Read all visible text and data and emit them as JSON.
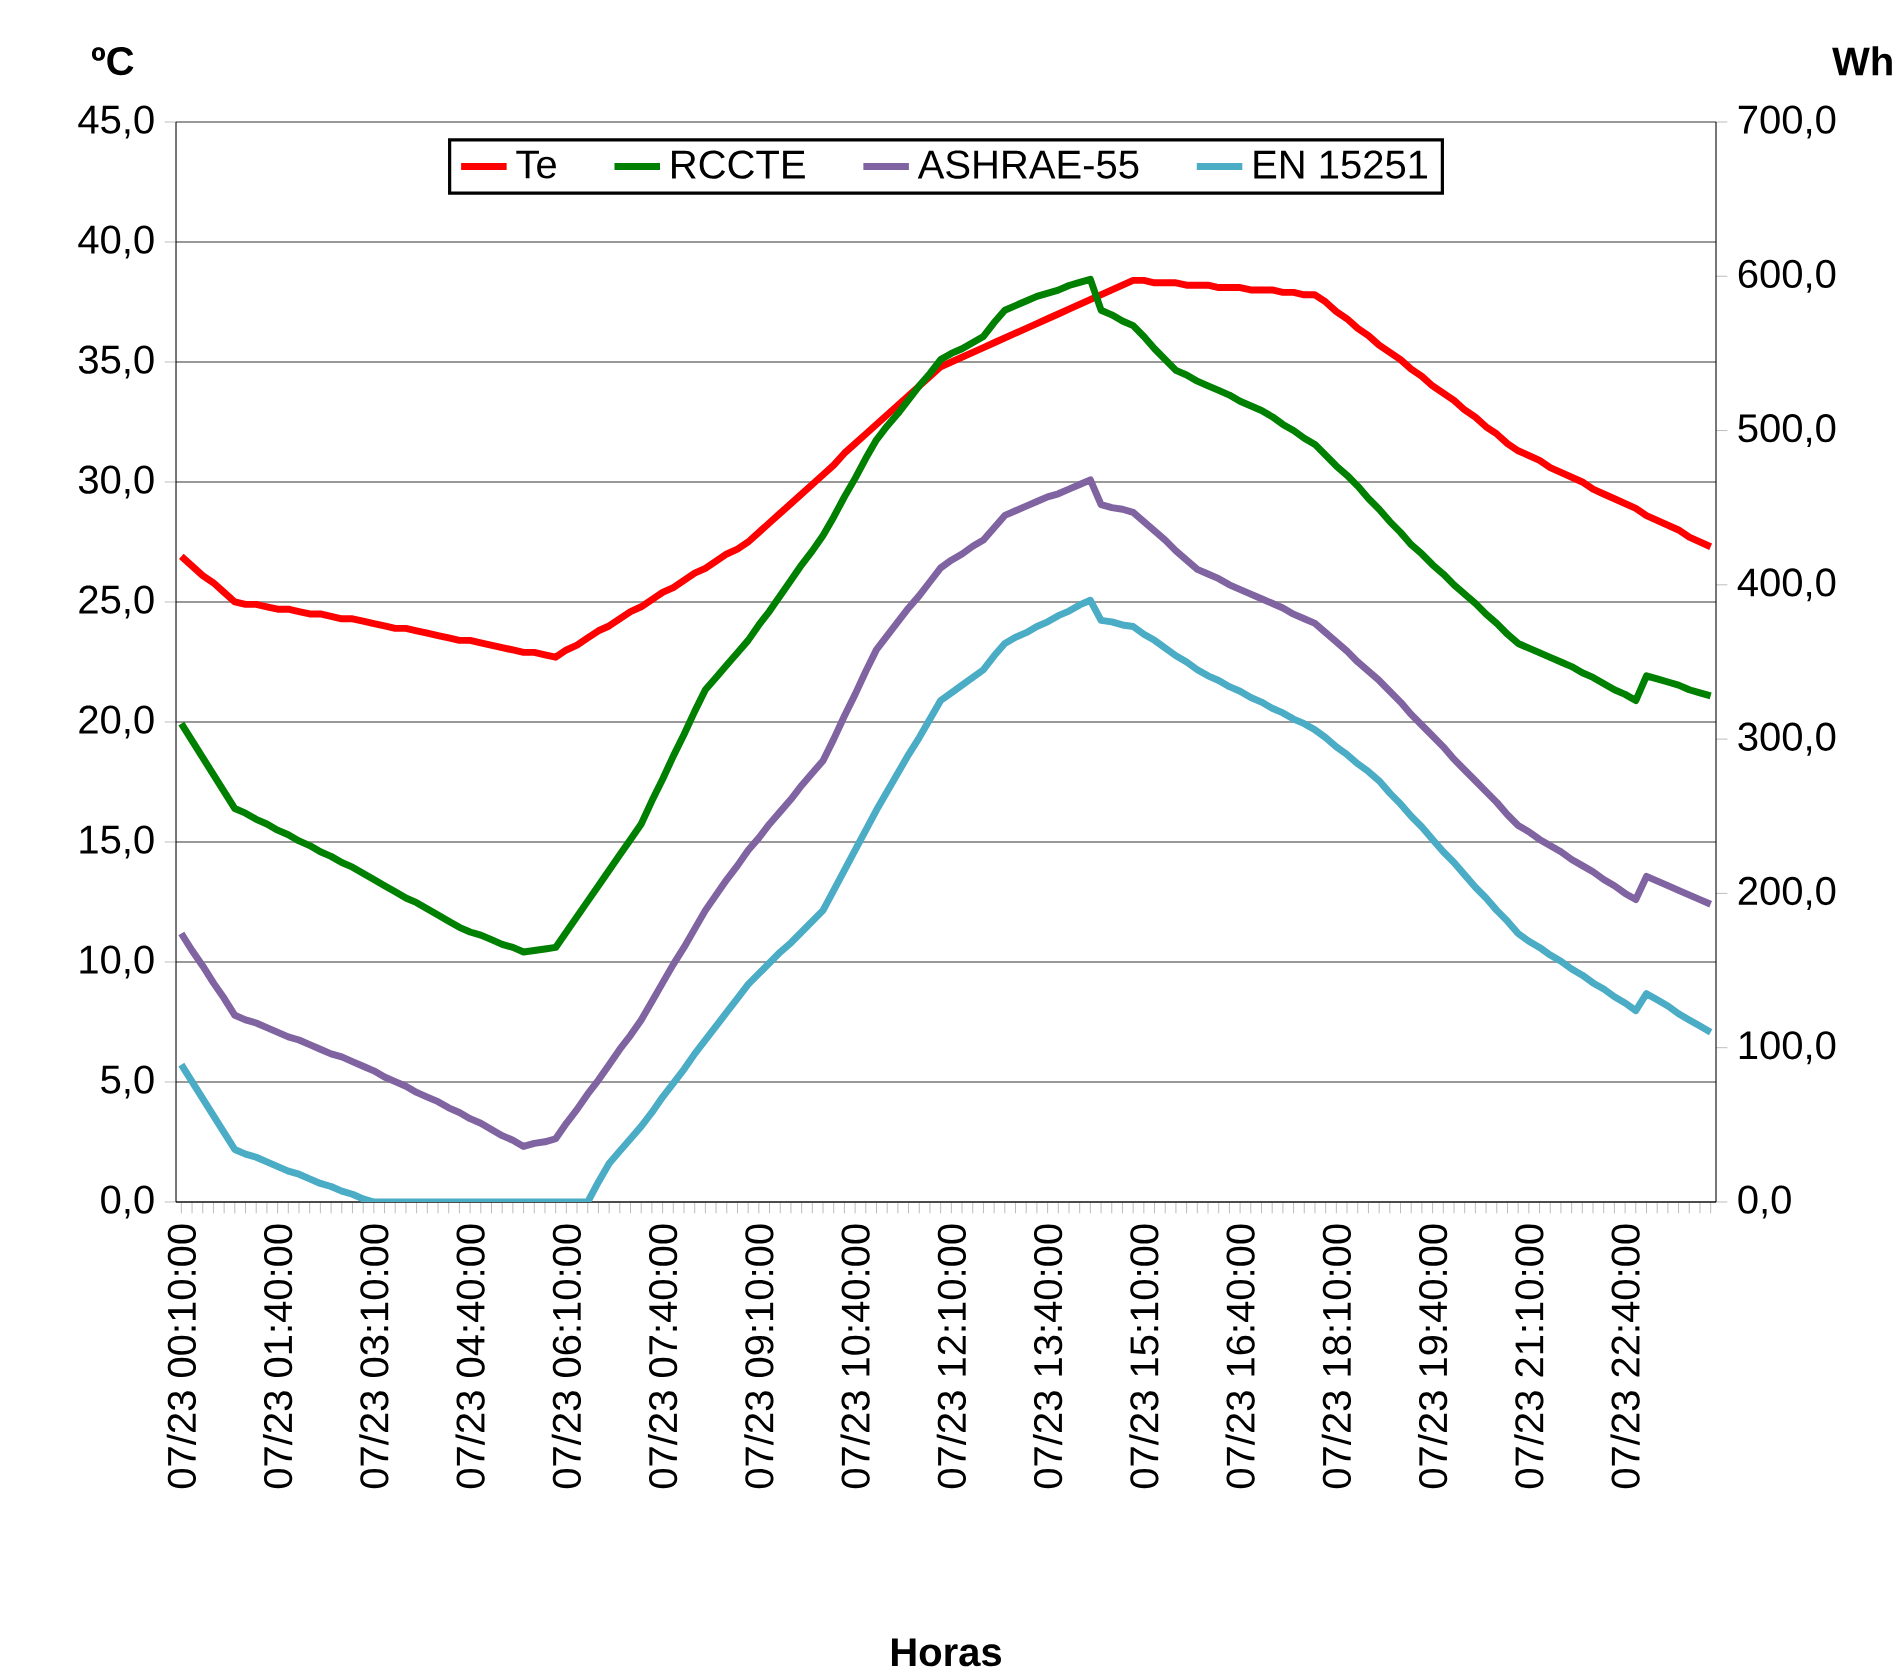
{
  "chart_data": {
    "type": "line",
    "xlabel": "Horas",
    "ylabel": "ºC",
    "y2label": "Wh",
    "categories": [
      "07/23  00:10:00",
      null,
      null,
      null,
      null,
      null,
      null,
      null,
      null,
      "07/23  01:40:00",
      null,
      null,
      null,
      null,
      null,
      null,
      null,
      null,
      "07/23  03:10:00",
      null,
      null,
      null,
      null,
      null,
      null,
      null,
      null,
      "07/23  04:40:00",
      null,
      null,
      null,
      null,
      null,
      null,
      null,
      null,
      "07/23  06:10:00",
      null,
      null,
      null,
      null,
      null,
      null,
      null,
      null,
      "07/23  07:40:00",
      null,
      null,
      null,
      null,
      null,
      null,
      null,
      null,
      "07/23  09:10:00",
      null,
      null,
      null,
      null,
      null,
      null,
      null,
      null,
      "07/23  10:40:00",
      null,
      null,
      null,
      null,
      null,
      null,
      null,
      null,
      "07/23  12:10:00",
      null,
      null,
      null,
      null,
      null,
      null,
      null,
      null,
      "07/23  13:40:00",
      null,
      null,
      null,
      null,
      null,
      null,
      null,
      null,
      "07/23  15:10:00",
      null,
      null,
      null,
      null,
      null,
      null,
      null,
      null,
      "07/23  16:40:00",
      null,
      null,
      null,
      null,
      null,
      null,
      null,
      null,
      "07/23  18:10:00",
      null,
      null,
      null,
      null,
      null,
      null,
      null,
      null,
      "07/23  19:40:00",
      null,
      null,
      null,
      null,
      null,
      null,
      null,
      null,
      "07/23  21:10:00",
      null,
      null,
      null,
      null,
      null,
      null,
      null,
      null,
      "07/23  22:40:00",
      null,
      null,
      null,
      null,
      null,
      null,
      null,
      null
    ],
    "ylim": [
      0,
      45
    ],
    "yticks": [
      {
        "value": 0,
        "label": "0,0"
      },
      {
        "value": 5,
        "label": "5,0"
      },
      {
        "value": 10,
        "label": "10,0"
      },
      {
        "value": 15,
        "label": "15,0"
      },
      {
        "value": 20,
        "label": "20,0"
      },
      {
        "value": 25,
        "label": "25,0"
      },
      {
        "value": 30,
        "label": "30,0"
      },
      {
        "value": 35,
        "label": "35,0"
      },
      {
        "value": 40,
        "label": "40,0"
      },
      {
        "value": 45,
        "label": "45,0"
      }
    ],
    "y2lim": [
      0,
      700
    ],
    "y2ticks": [
      {
        "value": 0,
        "label": "0,0"
      },
      {
        "value": 100,
        "label": "100,0"
      },
      {
        "value": 200,
        "label": "200,0"
      },
      {
        "value": 300,
        "label": "300,0"
      },
      {
        "value": 400,
        "label": "400,0"
      },
      {
        "value": 500,
        "label": "500,0"
      },
      {
        "value": 600,
        "label": "600,0"
      },
      {
        "value": 700,
        "label": "700,0"
      }
    ],
    "grid": "y",
    "legend": "top",
    "marker": "none",
    "line_style": "solid",
    "series": [
      {
        "name": "Te",
        "color": "#ff0000",
        "values": [
          26.9,
          26.5,
          26.1,
          25.8,
          25.4,
          25.0,
          24.9,
          24.9,
          24.8,
          24.7,
          24.7,
          24.6,
          24.5,
          24.5,
          24.4,
          24.3,
          24.3,
          24.2,
          24.1,
          24.0,
          23.9,
          23.9,
          23.8,
          23.7,
          23.6,
          23.5,
          23.4,
          23.4,
          23.3,
          23.2,
          23.1,
          23.0,
          22.9,
          22.9,
          22.8,
          22.7,
          23.0,
          23.2,
          23.5,
          23.8,
          24.0,
          24.3,
          24.6,
          24.8,
          25.1,
          25.4,
          25.6,
          25.9,
          26.2,
          26.4,
          26.7,
          27.0,
          27.2,
          27.5,
          27.9,
          28.3,
          28.7,
          29.1,
          29.5,
          29.9,
          30.3,
          30.7,
          31.2,
          31.6,
          32.0,
          32.4,
          32.8,
          33.2,
          33.6,
          34.0,
          34.4,
          34.8,
          35.0,
          35.2,
          35.4,
          35.6,
          35.8,
          36.0,
          36.2,
          36.4,
          36.6,
          36.8,
          37.0,
          37.2,
          37.4,
          37.6,
          37.8,
          38.0,
          38.2,
          38.4,
          38.4,
          38.3,
          38.3,
          38.3,
          38.2,
          38.2,
          38.2,
          38.1,
          38.1,
          38.1,
          38.0,
          38.0,
          38.0,
          37.9,
          37.9,
          37.8,
          37.8,
          37.5,
          37.1,
          36.8,
          36.4,
          36.1,
          35.7,
          35.4,
          35.1,
          34.7,
          34.4,
          34.0,
          33.7,
          33.4,
          33.0,
          32.7,
          32.3,
          32.0,
          31.6,
          31.3,
          31.1,
          30.9,
          30.6,
          30.4,
          30.2,
          30.0,
          29.7,
          29.5,
          29.3,
          29.1,
          28.9,
          28.6,
          28.4,
          28.2,
          28.0,
          27.7,
          27.5,
          27.3
        ]
      },
      {
        "name": "RCCTE",
        "color": "#008000",
        "axis": "y2",
        "values": [
          310,
          299,
          288,
          277,
          266,
          255,
          252,
          248,
          245,
          241,
          238,
          234,
          231,
          227,
          224,
          220,
          217,
          213,
          209,
          205,
          201,
          197,
          194,
          190,
          186,
          182,
          178,
          175,
          173,
          170,
          167,
          165,
          162,
          163,
          164,
          165,
          175,
          185,
          195,
          205,
          215,
          225,
          235,
          245,
          260,
          274,
          289,
          303,
          318,
          332,
          340,
          348,
          356,
          364,
          374,
          383,
          393,
          403,
          413,
          422,
          432,
          444,
          457,
          469,
          482,
          494,
          503,
          511,
          520,
          529,
          537,
          546,
          550,
          553,
          557,
          561,
          570,
          578,
          581,
          584,
          587,
          589,
          591,
          594,
          596,
          598,
          578,
          575,
          571,
          568,
          561,
          553,
          546,
          539,
          536,
          532,
          529,
          526,
          523,
          519,
          516,
          513,
          509,
          504,
          500,
          495,
          491,
          484,
          477,
          471,
          464,
          456,
          449,
          441,
          434,
          426,
          420,
          413,
          407,
          400,
          394,
          388,
          381,
          375,
          368,
          362,
          359,
          356,
          353,
          350,
          347,
          343,
          340,
          336,
          332,
          329,
          325,
          341,
          339,
          337,
          335,
          332,
          330,
          328
        ]
      },
      {
        "name": "ASHRAE-55",
        "color": "#8064a2",
        "axis": "y2",
        "values": [
          174,
          163,
          153,
          142,
          132,
          121,
          118,
          116,
          113,
          110,
          107,
          105,
          102,
          99,
          96,
          94,
          91,
          88,
          85,
          81,
          78,
          75,
          71,
          68,
          65,
          61,
          58,
          54,
          51,
          47,
          43,
          40,
          36,
          38,
          39,
          41,
          51,
          60,
          70,
          79,
          89,
          99,
          108,
          118,
          130,
          142,
          154,
          165,
          177,
          189,
          199,
          209,
          218,
          228,
          236,
          245,
          253,
          261,
          270,
          278,
          286,
          300,
          315,
          329,
          344,
          358,
          367,
          376,
          385,
          393,
          402,
          411,
          416,
          420,
          425,
          429,
          437,
          445,
          448,
          451,
          454,
          457,
          459,
          462,
          465,
          468,
          452,
          450,
          449,
          447,
          441,
          435,
          429,
          422,
          416,
          410,
          407,
          404,
          400,
          397,
          394,
          391,
          388,
          385,
          381,
          378,
          375,
          369,
          363,
          357,
          350,
          344,
          338,
          331,
          324,
          316,
          309,
          302,
          295,
          287,
          280,
          273,
          266,
          259,
          251,
          244,
          240,
          235,
          231,
          227,
          222,
          218,
          214,
          209,
          205,
          200,
          196,
          211,
          208,
          205,
          202,
          199,
          196,
          193
        ]
      },
      {
        "name": "EN 15251",
        "color": "#4bacc6",
        "axis": "y2",
        "values": [
          89,
          78,
          67,
          56,
          45,
          34,
          31,
          29,
          26,
          23,
          20,
          18,
          15,
          12,
          10,
          7,
          5,
          2,
          0,
          0,
          0,
          0,
          0,
          0,
          0,
          0,
          0,
          0,
          0,
          0,
          0,
          0,
          0,
          0,
          0,
          0,
          0,
          0,
          0,
          13,
          25,
          33,
          41,
          49,
          58,
          68,
          77,
          86,
          96,
          105,
          114,
          123,
          132,
          141,
          148,
          155,
          162,
          168,
          175,
          182,
          189,
          202,
          215,
          228,
          241,
          254,
          266,
          278,
          290,
          301,
          313,
          325,
          330,
          335,
          340,
          345,
          354,
          362,
          366,
          369,
          373,
          376,
          380,
          383,
          387,
          390,
          377,
          376,
          374,
          373,
          368,
          364,
          359,
          354,
          350,
          345,
          341,
          338,
          334,
          331,
          327,
          324,
          320,
          317,
          313,
          310,
          306,
          301,
          295,
          290,
          284,
          279,
          273,
          265,
          258,
          250,
          243,
          235,
          227,
          220,
          212,
          204,
          197,
          189,
          182,
          174,
          169,
          165,
          160,
          156,
          151,
          147,
          142,
          138,
          133,
          129,
          124,
          135,
          131,
          127,
          122,
          118,
          114,
          110
        ]
      }
    ]
  }
}
